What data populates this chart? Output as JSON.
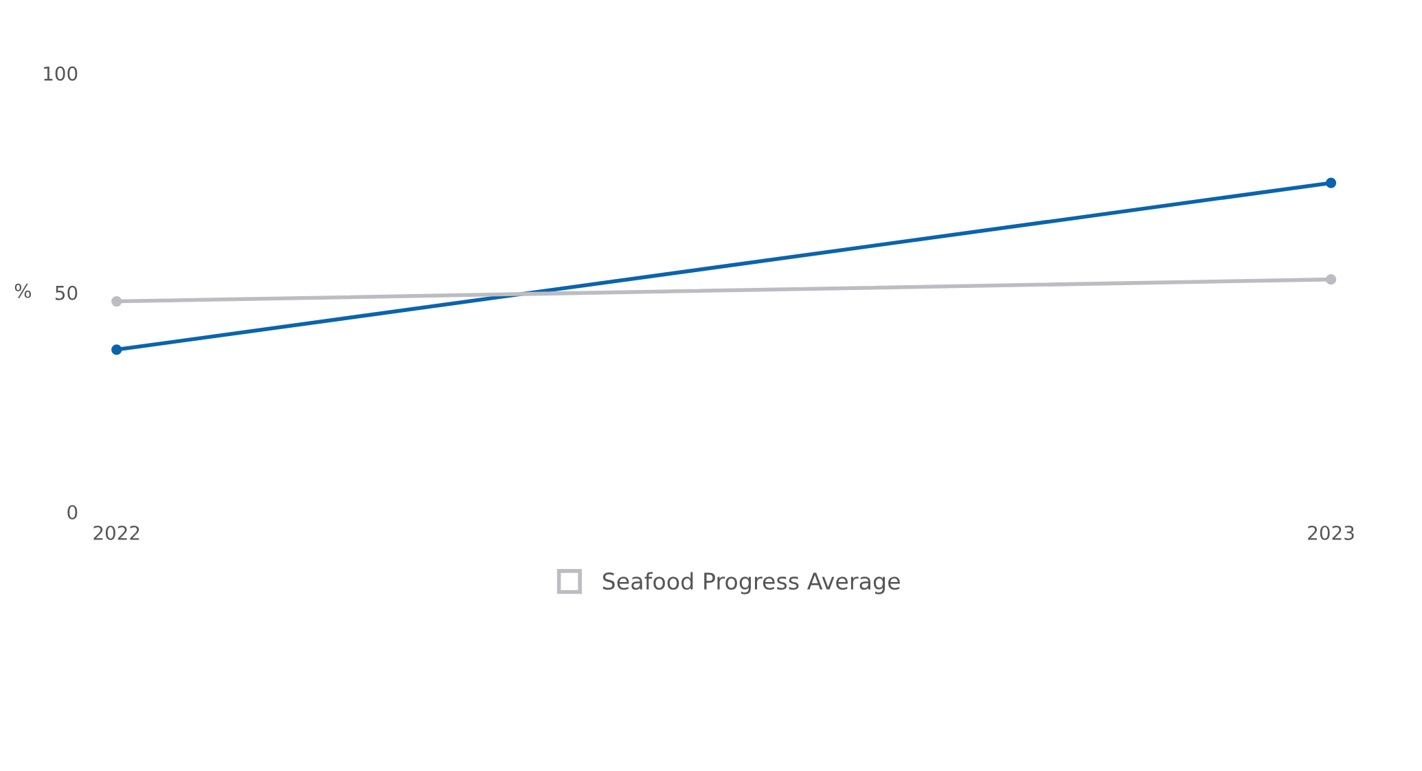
{
  "chart_data": {
    "type": "line",
    "categories": [
      "2022",
      "2023"
    ],
    "series": [
      {
        "color": "#0a64ad",
        "values": [
          37,
          75
        ]
      },
      {
        "name": "Seafood Progress Average",
        "color": "#bcbcc2",
        "values": [
          48,
          53
        ]
      }
    ],
    "ylabel": "%",
    "ylim": [
      0,
      100
    ],
    "yticks": [
      0,
      50,
      100
    ],
    "marker": "circle",
    "line_style": "solid",
    "grid": false,
    "legend": "bottom"
  }
}
